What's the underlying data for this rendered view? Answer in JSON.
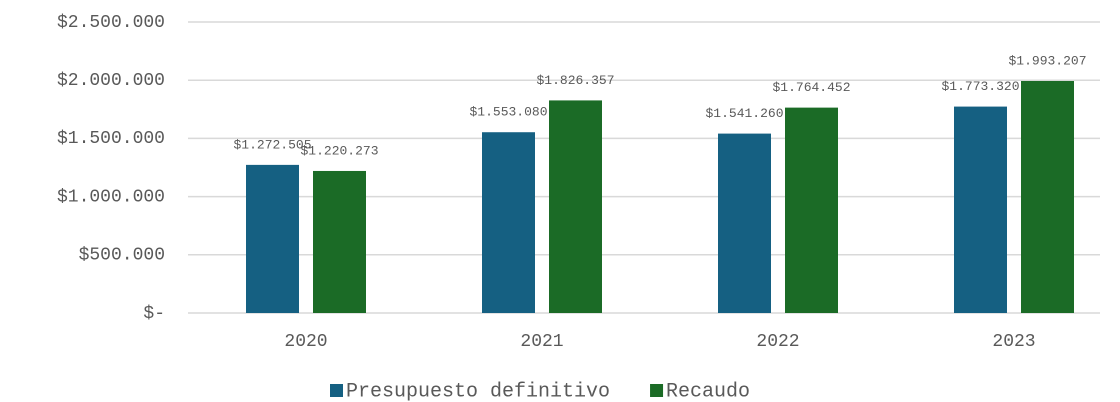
{
  "chart_data": {
    "type": "bar",
    "categories": [
      "2020",
      "2021",
      "2022",
      "2023"
    ],
    "series": [
      {
        "name": "Presupuesto definitivo",
        "color": "#156082",
        "values": [
          1272505,
          1553080,
          1541260,
          1773320
        ],
        "value_labels": [
          "$1.272.505",
          "$1.553.080",
          "$1.541.260",
          "$1.773.320"
        ]
      },
      {
        "name": "Recaudo",
        "color": "#1b6b26",
        "values": [
          1220273,
          1826357,
          1764452,
          1993207
        ],
        "value_labels": [
          "$1.220.273",
          "$1.826.357",
          "$1.764.452",
          "$1.993.207"
        ]
      }
    ],
    "ylim": [
      0,
      2500000
    ],
    "yticks": [
      {
        "value": 0,
        "label": "$-"
      },
      {
        "value": 500000,
        "label": "$500.000"
      },
      {
        "value": 1000000,
        "label": "$1.000.000"
      },
      {
        "value": 1500000,
        "label": "$1.500.000"
      },
      {
        "value": 2000000,
        "label": "$2.000.000"
      },
      {
        "value": 2500000,
        "label": "$2.500.000"
      }
    ],
    "grid": true,
    "legend": "bottom"
  }
}
